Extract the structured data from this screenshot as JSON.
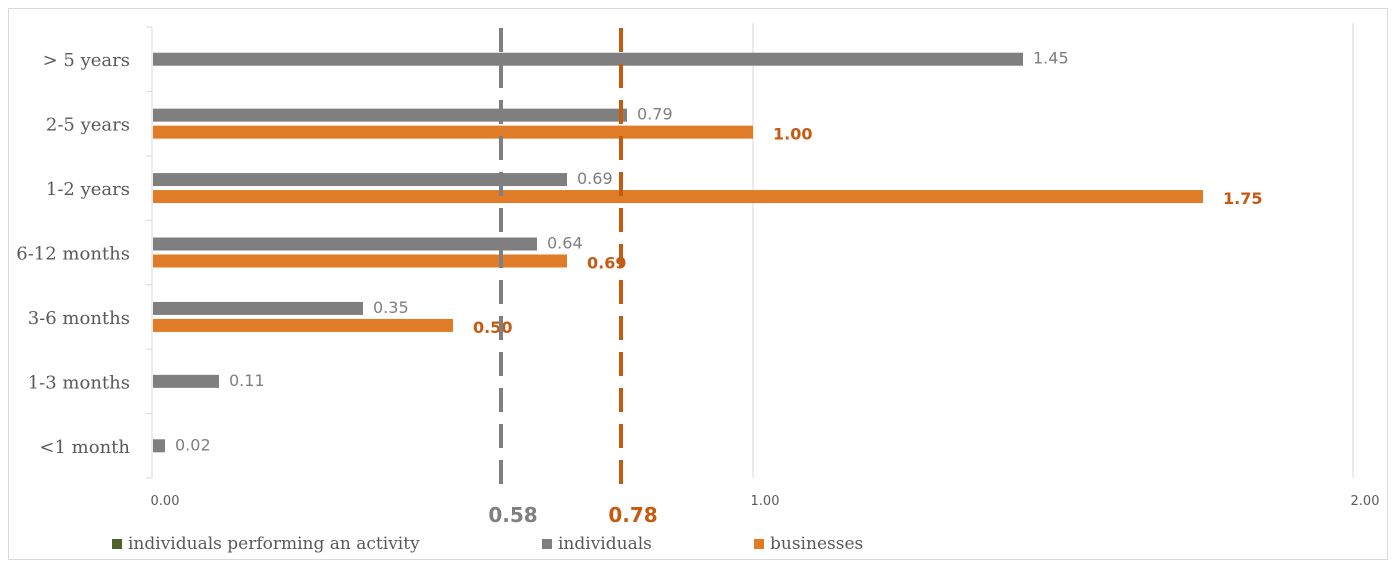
{
  "chart_data": {
    "type": "bar",
    "orientation": "horizontal",
    "categories": [
      "> 5 years",
      "2-5 years",
      "1-2 years",
      "6-12 months",
      "3-6 months",
      "1-3 months",
      "<1 month"
    ],
    "series": [
      {
        "name": "individuals performing an activity",
        "color": "#4f6228",
        "values": [
          null,
          null,
          null,
          null,
          null,
          null,
          null
        ]
      },
      {
        "name": "individuals",
        "color": "#7f7f7f",
        "values": [
          1.45,
          0.79,
          0.69,
          0.64,
          0.35,
          0.11,
          0.02
        ],
        "labels": [
          "1.45",
          "0.79",
          "0.69",
          "0.64",
          "0.35",
          "0.11",
          "0.02"
        ]
      },
      {
        "name": "businesses",
        "color": "#e07b28",
        "values": [
          null,
          1.0,
          1.75,
          0.69,
          0.5,
          null,
          null
        ],
        "labels": [
          "",
          "1.00",
          "1.75",
          "0.69",
          "0.50",
          "",
          ""
        ]
      }
    ],
    "reference_lines": [
      {
        "value": 0.58,
        "label": "0.58",
        "color": "#7f7f7f"
      },
      {
        "value": 0.78,
        "label": "0.78",
        "color": "#c55a11"
      }
    ],
    "xlim": [
      0,
      2
    ],
    "xticks": [
      "0.00",
      "1.00",
      "2.00"
    ],
    "xtick_values": [
      0,
      1,
      2
    ],
    "grid": true,
    "legend_position": "bottom",
    "label_color_businesses": "#c55a11"
  }
}
